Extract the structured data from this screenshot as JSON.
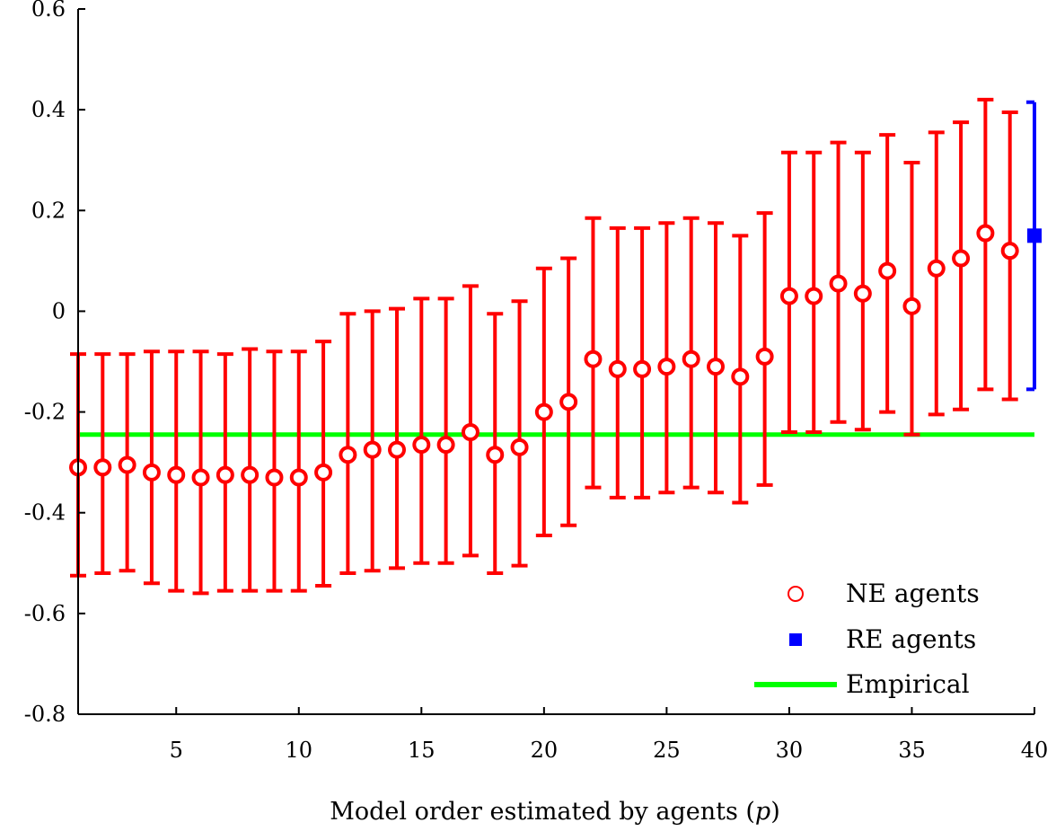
{
  "chart_data": {
    "type": "scatter",
    "title": "",
    "xlabel": "Model order estimated by agents (p)",
    "xlabel_main": "Model order estimated by agents (",
    "xlabel_var": "p",
    "xlabel_close": ")",
    "ylabel": "",
    "xlim": [
      1,
      40
    ],
    "ylim": [
      -0.8,
      0.6
    ],
    "x_ticks": [
      5,
      10,
      15,
      20,
      25,
      30,
      35,
      40
    ],
    "y_ticks": [
      -0.8,
      -0.6,
      -0.4,
      -0.2,
      0,
      0.2,
      0.4,
      0.6
    ],
    "x_tick_labels": [
      "5",
      "10",
      "15",
      "20",
      "25",
      "30",
      "35",
      "40"
    ],
    "y_tick_labels": [
      "-0.8",
      "-0.6",
      "-0.4",
      "-0.2",
      "0",
      "0.2",
      "0.4",
      "0.6"
    ],
    "grid": false,
    "legend_position": "bottom-right",
    "series": [
      {
        "name": "NE agents",
        "marker": "open-circle",
        "color": "#ff0000",
        "x": [
          1,
          2,
          3,
          4,
          5,
          6,
          7,
          8,
          9,
          10,
          11,
          12,
          13,
          14,
          15,
          16,
          17,
          18,
          19,
          20,
          21,
          22,
          23,
          24,
          25,
          26,
          27,
          28,
          29,
          30,
          31,
          32,
          33,
          34,
          35,
          36,
          37,
          38,
          39
        ],
        "y": [
          -0.31,
          -0.31,
          -0.305,
          -0.32,
          -0.325,
          -0.33,
          -0.325,
          -0.325,
          -0.33,
          -0.33,
          -0.32,
          -0.285,
          -0.275,
          -0.275,
          -0.265,
          -0.265,
          -0.24,
          -0.285,
          -0.27,
          -0.2,
          -0.18,
          -0.095,
          -0.115,
          -0.115,
          -0.11,
          -0.095,
          -0.11,
          -0.13,
          -0.09,
          0.03,
          0.03,
          0.055,
          0.035,
          0.08,
          0.01,
          0.085,
          0.105,
          0.155,
          0.12
        ],
        "err_low": [
          -0.525,
          -0.52,
          -0.515,
          -0.54,
          -0.555,
          -0.56,
          -0.555,
          -0.555,
          -0.555,
          -0.555,
          -0.545,
          -0.52,
          -0.515,
          -0.51,
          -0.5,
          -0.5,
          -0.485,
          -0.52,
          -0.505,
          -0.445,
          -0.425,
          -0.35,
          -0.37,
          -0.37,
          -0.36,
          -0.35,
          -0.36,
          -0.38,
          -0.345,
          -0.24,
          -0.24,
          -0.22,
          -0.235,
          -0.2,
          -0.245,
          -0.205,
          -0.195,
          -0.155,
          -0.175
        ],
        "err_high": [
          -0.085,
          -0.085,
          -0.085,
          -0.08,
          -0.08,
          -0.08,
          -0.085,
          -0.075,
          -0.08,
          -0.08,
          -0.06,
          -0.005,
          0.0,
          0.005,
          0.025,
          0.025,
          0.05,
          -0.005,
          0.02,
          0.085,
          0.105,
          0.185,
          0.165,
          0.165,
          0.175,
          0.185,
          0.175,
          0.15,
          0.195,
          0.315,
          0.315,
          0.335,
          0.315,
          0.35,
          0.295,
          0.355,
          0.375,
          0.42,
          0.395
        ]
      },
      {
        "name": "RE agents",
        "marker": "filled-square",
        "color": "#0000ff",
        "x": [
          40
        ],
        "y": [
          0.15
        ],
        "err_low": [
          -0.155
        ],
        "err_high": [
          0.415
        ]
      },
      {
        "name": "Empirical",
        "marker": "line",
        "color": "#00ff00",
        "y": -0.245
      }
    ]
  }
}
